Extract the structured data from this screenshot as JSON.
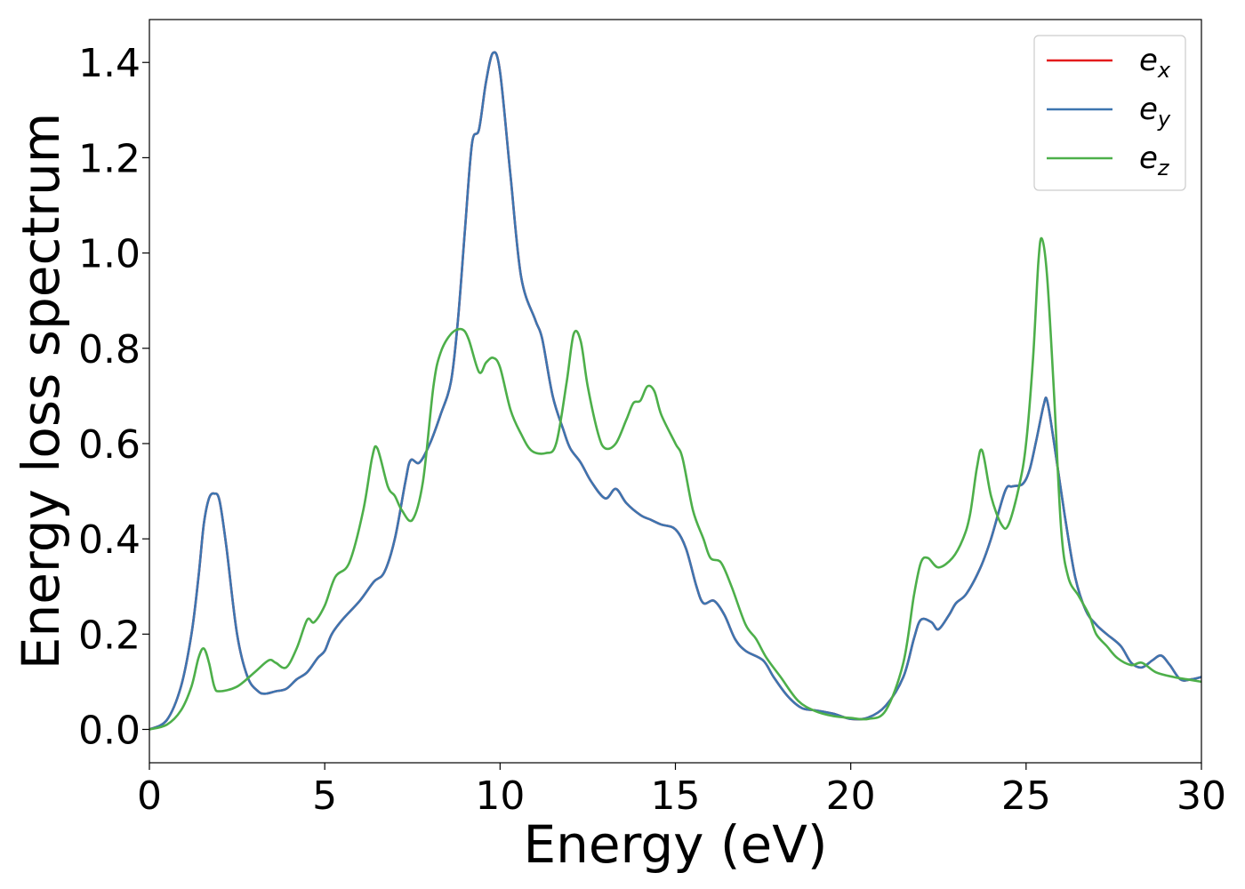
{
  "chart_data": {
    "type": "line",
    "title": "",
    "xlabel": "Energy (eV)",
    "ylabel": "Energy loss spectrum",
    "xlim": [
      0,
      30
    ],
    "ylim": [
      -0.07,
      1.49
    ],
    "xticks": [
      0,
      5,
      10,
      15,
      20,
      25,
      30
    ],
    "xtick_labels": [
      "0",
      "5",
      "10",
      "15",
      "20",
      "25",
      "30"
    ],
    "yticks": [
      0.0,
      0.2,
      0.4,
      0.6,
      0.8,
      1.0,
      1.2,
      1.4
    ],
    "ytick_labels": [
      "0.0",
      "0.2",
      "0.4",
      "0.6",
      "0.8",
      "1.0",
      "1.2",
      "1.4"
    ],
    "grid": false,
    "legend_position": "top-right",
    "series": [
      {
        "name": "e_x",
        "legend_base": "e",
        "legend_sub": "x",
        "color": "#e41a1c",
        "points": [
          [
            0,
            0.0
          ],
          [
            0.5,
            0.02
          ],
          [
            0.9,
            0.09
          ],
          [
            1.2,
            0.2
          ],
          [
            1.4,
            0.32
          ],
          [
            1.55,
            0.43
          ],
          [
            1.7,
            0.485
          ],
          [
            1.85,
            0.495
          ],
          [
            2.0,
            0.48
          ],
          [
            2.2,
            0.38
          ],
          [
            2.5,
            0.2
          ],
          [
            2.8,
            0.11
          ],
          [
            3.1,
            0.08
          ],
          [
            3.3,
            0.075
          ],
          [
            3.6,
            0.08
          ],
          [
            3.9,
            0.085
          ],
          [
            4.2,
            0.105
          ],
          [
            4.5,
            0.12
          ],
          [
            4.8,
            0.15
          ],
          [
            5.0,
            0.165
          ],
          [
            5.2,
            0.2
          ],
          [
            5.5,
            0.23
          ],
          [
            6.0,
            0.27
          ],
          [
            6.4,
            0.31
          ],
          [
            6.7,
            0.33
          ],
          [
            7.0,
            0.4
          ],
          [
            7.3,
            0.52
          ],
          [
            7.45,
            0.565
          ],
          [
            7.7,
            0.56
          ],
          [
            8.0,
            0.6
          ],
          [
            8.3,
            0.66
          ],
          [
            8.6,
            0.73
          ],
          [
            8.8,
            0.86
          ],
          [
            9.0,
            1.05
          ],
          [
            9.2,
            1.23
          ],
          [
            9.4,
            1.26
          ],
          [
            9.6,
            1.36
          ],
          [
            9.8,
            1.42
          ],
          [
            10.0,
            1.38
          ],
          [
            10.3,
            1.16
          ],
          [
            10.6,
            0.95
          ],
          [
            11.0,
            0.86
          ],
          [
            11.2,
            0.82
          ],
          [
            11.5,
            0.7
          ],
          [
            11.8,
            0.63
          ],
          [
            12.0,
            0.59
          ],
          [
            12.3,
            0.56
          ],
          [
            12.6,
            0.52
          ],
          [
            13.0,
            0.485
          ],
          [
            13.3,
            0.505
          ],
          [
            13.6,
            0.475
          ],
          [
            14.0,
            0.45
          ],
          [
            14.3,
            0.44
          ],
          [
            14.6,
            0.43
          ],
          [
            15.0,
            0.42
          ],
          [
            15.3,
            0.38
          ],
          [
            15.6,
            0.3
          ],
          [
            15.8,
            0.265
          ],
          [
            16.1,
            0.27
          ],
          [
            16.4,
            0.24
          ],
          [
            16.7,
            0.19
          ],
          [
            17.0,
            0.165
          ],
          [
            17.5,
            0.145
          ],
          [
            17.8,
            0.11
          ],
          [
            18.2,
            0.07
          ],
          [
            18.6,
            0.045
          ],
          [
            19.0,
            0.04
          ],
          [
            19.5,
            0.033
          ],
          [
            20.0,
            0.022
          ],
          [
            20.5,
            0.025
          ],
          [
            21.0,
            0.05
          ],
          [
            21.5,
            0.11
          ],
          [
            21.8,
            0.19
          ],
          [
            22.0,
            0.23
          ],
          [
            22.3,
            0.225
          ],
          [
            22.5,
            0.21
          ],
          [
            22.8,
            0.24
          ],
          [
            23.0,
            0.265
          ],
          [
            23.3,
            0.285
          ],
          [
            23.7,
            0.34
          ],
          [
            24.0,
            0.4
          ],
          [
            24.4,
            0.5
          ],
          [
            24.6,
            0.51
          ],
          [
            24.9,
            0.515
          ],
          [
            25.1,
            0.545
          ],
          [
            25.3,
            0.61
          ],
          [
            25.5,
            0.68
          ],
          [
            25.6,
            0.69
          ],
          [
            25.8,
            0.6
          ],
          [
            26.1,
            0.45
          ],
          [
            26.4,
            0.32
          ],
          [
            26.7,
            0.25
          ],
          [
            27.0,
            0.22
          ],
          [
            27.3,
            0.2
          ],
          [
            27.7,
            0.175
          ],
          [
            28.0,
            0.14
          ],
          [
            28.3,
            0.13
          ],
          [
            28.6,
            0.145
          ],
          [
            28.85,
            0.155
          ],
          [
            29.1,
            0.135
          ],
          [
            29.4,
            0.105
          ],
          [
            29.7,
            0.105
          ],
          [
            30.0,
            0.11
          ]
        ]
      },
      {
        "name": "e_y",
        "legend_base": "e",
        "legend_sub": "y",
        "color": "#3d75b0",
        "points": [
          [
            0,
            0.0
          ],
          [
            0.5,
            0.02
          ],
          [
            0.9,
            0.09
          ],
          [
            1.2,
            0.2
          ],
          [
            1.4,
            0.32
          ],
          [
            1.55,
            0.43
          ],
          [
            1.7,
            0.485
          ],
          [
            1.85,
            0.495
          ],
          [
            2.0,
            0.48
          ],
          [
            2.2,
            0.38
          ],
          [
            2.5,
            0.2
          ],
          [
            2.8,
            0.11
          ],
          [
            3.1,
            0.08
          ],
          [
            3.3,
            0.075
          ],
          [
            3.6,
            0.08
          ],
          [
            3.9,
            0.085
          ],
          [
            4.2,
            0.105
          ],
          [
            4.5,
            0.12
          ],
          [
            4.8,
            0.15
          ],
          [
            5.0,
            0.165
          ],
          [
            5.2,
            0.2
          ],
          [
            5.5,
            0.23
          ],
          [
            6.0,
            0.27
          ],
          [
            6.4,
            0.31
          ],
          [
            6.7,
            0.33
          ],
          [
            7.0,
            0.4
          ],
          [
            7.3,
            0.52
          ],
          [
            7.45,
            0.565
          ],
          [
            7.7,
            0.56
          ],
          [
            8.0,
            0.6
          ],
          [
            8.3,
            0.66
          ],
          [
            8.6,
            0.73
          ],
          [
            8.8,
            0.86
          ],
          [
            9.0,
            1.05
          ],
          [
            9.2,
            1.23
          ],
          [
            9.4,
            1.26
          ],
          [
            9.6,
            1.36
          ],
          [
            9.8,
            1.42
          ],
          [
            10.0,
            1.38
          ],
          [
            10.3,
            1.16
          ],
          [
            10.6,
            0.95
          ],
          [
            11.0,
            0.86
          ],
          [
            11.2,
            0.82
          ],
          [
            11.5,
            0.7
          ],
          [
            11.8,
            0.63
          ],
          [
            12.0,
            0.59
          ],
          [
            12.3,
            0.56
          ],
          [
            12.6,
            0.52
          ],
          [
            13.0,
            0.485
          ],
          [
            13.3,
            0.505
          ],
          [
            13.6,
            0.475
          ],
          [
            14.0,
            0.45
          ],
          [
            14.3,
            0.44
          ],
          [
            14.6,
            0.43
          ],
          [
            15.0,
            0.42
          ],
          [
            15.3,
            0.38
          ],
          [
            15.6,
            0.3
          ],
          [
            15.8,
            0.265
          ],
          [
            16.1,
            0.27
          ],
          [
            16.4,
            0.24
          ],
          [
            16.7,
            0.19
          ],
          [
            17.0,
            0.165
          ],
          [
            17.5,
            0.145
          ],
          [
            17.8,
            0.11
          ],
          [
            18.2,
            0.07
          ],
          [
            18.6,
            0.045
          ],
          [
            19.0,
            0.04
          ],
          [
            19.5,
            0.033
          ],
          [
            20.0,
            0.022
          ],
          [
            20.5,
            0.025
          ],
          [
            21.0,
            0.05
          ],
          [
            21.5,
            0.11
          ],
          [
            21.8,
            0.19
          ],
          [
            22.0,
            0.23
          ],
          [
            22.3,
            0.225
          ],
          [
            22.5,
            0.21
          ],
          [
            22.8,
            0.24
          ],
          [
            23.0,
            0.265
          ],
          [
            23.3,
            0.285
          ],
          [
            23.7,
            0.34
          ],
          [
            24.0,
            0.4
          ],
          [
            24.4,
            0.5
          ],
          [
            24.6,
            0.51
          ],
          [
            24.9,
            0.515
          ],
          [
            25.1,
            0.545
          ],
          [
            25.3,
            0.61
          ],
          [
            25.5,
            0.68
          ],
          [
            25.6,
            0.69
          ],
          [
            25.8,
            0.6
          ],
          [
            26.1,
            0.45
          ],
          [
            26.4,
            0.32
          ],
          [
            26.7,
            0.25
          ],
          [
            27.0,
            0.22
          ],
          [
            27.3,
            0.2
          ],
          [
            27.7,
            0.175
          ],
          [
            28.0,
            0.14
          ],
          [
            28.3,
            0.13
          ],
          [
            28.6,
            0.145
          ],
          [
            28.85,
            0.155
          ],
          [
            29.1,
            0.135
          ],
          [
            29.4,
            0.105
          ],
          [
            29.7,
            0.105
          ],
          [
            30.0,
            0.11
          ]
        ]
      },
      {
        "name": "e_z",
        "legend_base": "e",
        "legend_sub": "z",
        "color": "#4daf4a",
        "points": [
          [
            0,
            0.0
          ],
          [
            0.5,
            0.01
          ],
          [
            0.9,
            0.04
          ],
          [
            1.2,
            0.09
          ],
          [
            1.4,
            0.15
          ],
          [
            1.55,
            0.17
          ],
          [
            1.7,
            0.14
          ],
          [
            1.85,
            0.09
          ],
          [
            2.0,
            0.08
          ],
          [
            2.5,
            0.09
          ],
          [
            3.0,
            0.12
          ],
          [
            3.4,
            0.145
          ],
          [
            3.6,
            0.14
          ],
          [
            3.9,
            0.13
          ],
          [
            4.2,
            0.17
          ],
          [
            4.5,
            0.23
          ],
          [
            4.7,
            0.225
          ],
          [
            5.0,
            0.26
          ],
          [
            5.3,
            0.32
          ],
          [
            5.7,
            0.35
          ],
          [
            6.1,
            0.46
          ],
          [
            6.35,
            0.57
          ],
          [
            6.5,
            0.59
          ],
          [
            6.8,
            0.51
          ],
          [
            7.0,
            0.49
          ],
          [
            7.2,
            0.46
          ],
          [
            7.5,
            0.44
          ],
          [
            7.8,
            0.52
          ],
          [
            8.1,
            0.72
          ],
          [
            8.3,
            0.79
          ],
          [
            8.6,
            0.83
          ],
          [
            8.9,
            0.84
          ],
          [
            9.1,
            0.82
          ],
          [
            9.4,
            0.75
          ],
          [
            9.6,
            0.77
          ],
          [
            9.8,
            0.78
          ],
          [
            10.0,
            0.76
          ],
          [
            10.3,
            0.67
          ],
          [
            10.6,
            0.62
          ],
          [
            10.9,
            0.585
          ],
          [
            11.3,
            0.58
          ],
          [
            11.6,
            0.6
          ],
          [
            11.9,
            0.73
          ],
          [
            12.1,
            0.83
          ],
          [
            12.3,
            0.815
          ],
          [
            12.5,
            0.72
          ],
          [
            12.8,
            0.62
          ],
          [
            13.0,
            0.59
          ],
          [
            13.3,
            0.6
          ],
          [
            13.6,
            0.65
          ],
          [
            13.8,
            0.685
          ],
          [
            14.0,
            0.69
          ],
          [
            14.2,
            0.72
          ],
          [
            14.4,
            0.71
          ],
          [
            14.6,
            0.66
          ],
          [
            15.0,
            0.6
          ],
          [
            15.2,
            0.57
          ],
          [
            15.5,
            0.46
          ],
          [
            15.8,
            0.4
          ],
          [
            16.0,
            0.36
          ],
          [
            16.3,
            0.35
          ],
          [
            16.6,
            0.3
          ],
          [
            17.0,
            0.22
          ],
          [
            17.3,
            0.19
          ],
          [
            17.6,
            0.15
          ],
          [
            18.0,
            0.11
          ],
          [
            18.5,
            0.06
          ],
          [
            19.0,
            0.038
          ],
          [
            19.5,
            0.028
          ],
          [
            20.0,
            0.024
          ],
          [
            20.5,
            0.022
          ],
          [
            21.0,
            0.04
          ],
          [
            21.5,
            0.14
          ],
          [
            21.8,
            0.28
          ],
          [
            22.0,
            0.35
          ],
          [
            22.2,
            0.36
          ],
          [
            22.5,
            0.34
          ],
          [
            22.9,
            0.36
          ],
          [
            23.2,
            0.4
          ],
          [
            23.4,
            0.45
          ],
          [
            23.6,
            0.55
          ],
          [
            23.75,
            0.585
          ],
          [
            24.0,
            0.49
          ],
          [
            24.3,
            0.43
          ],
          [
            24.5,
            0.43
          ],
          [
            24.8,
            0.51
          ],
          [
            25.0,
            0.6
          ],
          [
            25.2,
            0.78
          ],
          [
            25.35,
            0.98
          ],
          [
            25.45,
            1.03
          ],
          [
            25.6,
            0.95
          ],
          [
            25.8,
            0.7
          ],
          [
            26.0,
            0.42
          ],
          [
            26.2,
            0.32
          ],
          [
            26.5,
            0.28
          ],
          [
            26.8,
            0.24
          ],
          [
            27.0,
            0.2
          ],
          [
            27.3,
            0.175
          ],
          [
            27.6,
            0.15
          ],
          [
            28.0,
            0.135
          ],
          [
            28.3,
            0.14
          ],
          [
            28.7,
            0.12
          ],
          [
            29.2,
            0.11
          ],
          [
            29.6,
            0.105
          ],
          [
            30.0,
            0.1
          ]
        ]
      }
    ]
  }
}
